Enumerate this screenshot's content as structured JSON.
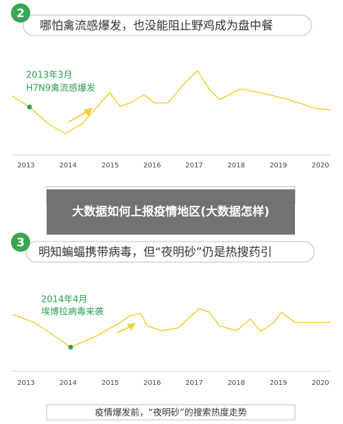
{
  "sections": [
    {
      "number": "2",
      "heading": "哪怕禽流感爆发，也没能阻止野鸡成为盘中餐",
      "annotation": {
        "date": "2013年3月",
        "event": "H7N9禽流感爆发"
      },
      "years": [
        "2013",
        "2014",
        "2015",
        "2016",
        "2017",
        "2018",
        "2019",
        "2020"
      ]
    },
    {
      "number": "3",
      "heading": "明知蝙蝠携带病毒，但“夜明砂”仍是热搜药引",
      "annotation": {
        "date": "2014年4月",
        "event": "埃博拉病毒来袭"
      },
      "years": [
        "2013",
        "2014",
        "2015",
        "2016",
        "2017",
        "2018",
        "2019",
        "2020"
      ],
      "caption": "疫情爆发前，“夜明砂”的搜索热度走势"
    }
  ],
  "overlay": {
    "title": "大数据如何上报疫情地区(大数据怎样)"
  }
}
